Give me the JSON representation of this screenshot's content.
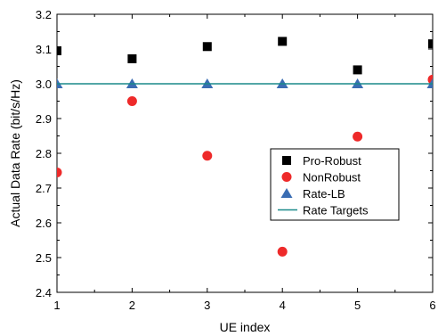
{
  "chart_data": {
    "type": "scatter",
    "xlabel": "UE index",
    "ylabel": "Actual Data Rate (bit/s/Hz)",
    "xlim": [
      1,
      6
    ],
    "ylim": [
      2.4,
      3.2
    ],
    "x_ticks": [
      "1",
      "2",
      "3",
      "4",
      "5",
      "6"
    ],
    "y_ticks": [
      "2.4",
      "2.5",
      "2.6",
      "2.7",
      "2.8",
      "2.9",
      "3.0",
      "3.1",
      "3.2"
    ],
    "grid": false,
    "legend_position": "center-right",
    "x": [
      1,
      2,
      3,
      4,
      5,
      6
    ],
    "series": [
      {
        "name": "Pro-Robust",
        "marker": "square",
        "color": "#000000",
        "values": [
          3.095,
          3.072,
          3.107,
          3.122,
          3.04,
          3.115
        ]
      },
      {
        "name": "NonRobust",
        "marker": "circle",
        "color": "#ee2a2a",
        "values": [
          2.745,
          2.95,
          2.793,
          2.517,
          2.848,
          3.012
        ]
      },
      {
        "name": "Rate-LB",
        "marker": "triangle",
        "color": "#3a6db3",
        "values": [
          3.0,
          3.0,
          3.0,
          3.0,
          3.0,
          3.0
        ]
      },
      {
        "name": "Rate Targets",
        "marker": "line",
        "color": "#1a8a8a",
        "values": [
          3.0,
          3.0,
          3.0,
          3.0,
          3.0,
          3.0
        ]
      }
    ]
  }
}
